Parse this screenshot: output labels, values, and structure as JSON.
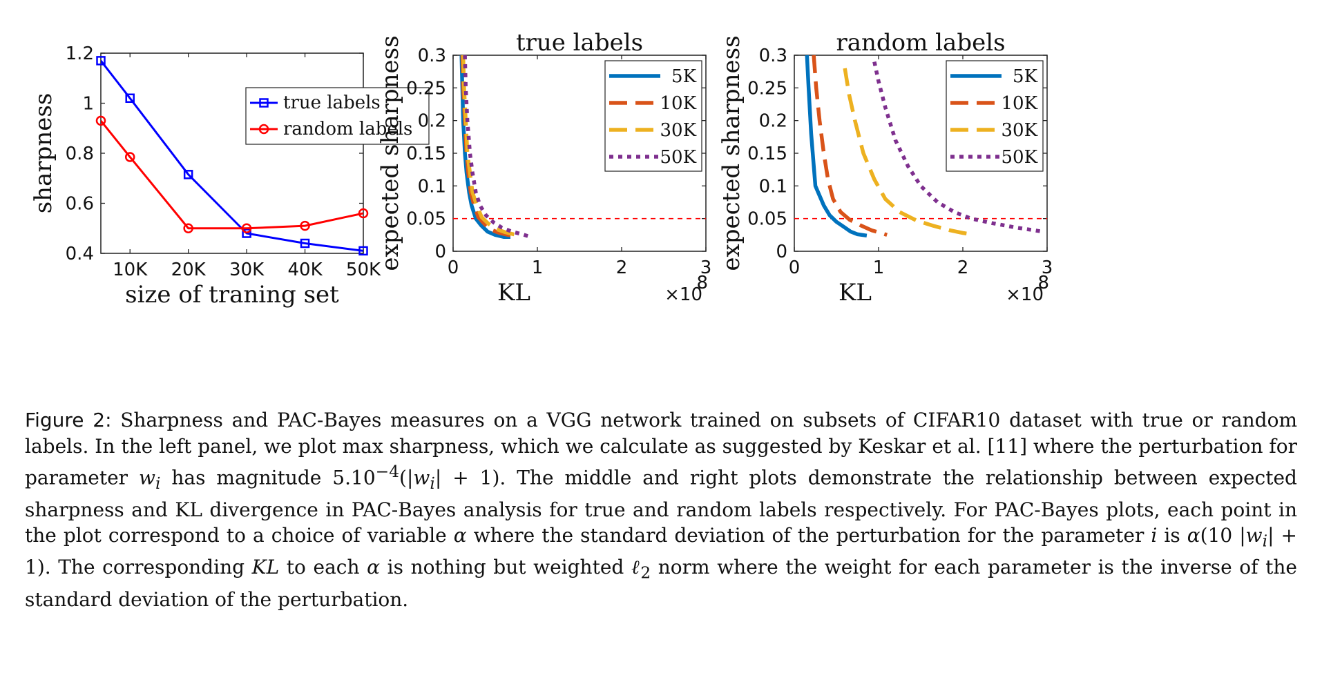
{
  "chart_data": [
    {
      "type": "line",
      "title": "",
      "xlabel": "size of traning set",
      "ylabel": "sharpness",
      "xlim": [
        5,
        50
      ],
      "ylim": [
        0.4,
        1.2
      ],
      "xticks": [
        10,
        20,
        30,
        40,
        50
      ],
      "xtick_labels": [
        "10K",
        "20K",
        "30K",
        "40K",
        "50K"
      ],
      "yticks": [
        0.4,
        0.6,
        0.8,
        1.0,
        1.2
      ],
      "ytick_labels": [
        "0.4",
        "0.6",
        "0.8",
        "1",
        "1.2"
      ],
      "legend_position": "top-right",
      "grid": false,
      "x": [
        5,
        10,
        20,
        30,
        40,
        50
      ],
      "series": [
        {
          "name": "true labels",
          "color": "#0000ff",
          "marker": "square",
          "values": [
            1.17,
            1.02,
            0.715,
            0.48,
            0.44,
            0.41
          ]
        },
        {
          "name": "random labels",
          "color": "#ff0000",
          "marker": "circle",
          "values": [
            0.93,
            0.785,
            0.5,
            0.5,
            0.51,
            0.56
          ]
        }
      ]
    },
    {
      "type": "line",
      "title": "true labels",
      "xlabel": "KL",
      "ylabel": "expected sharpness",
      "x_multiplier": "×10",
      "x_multiplier_exp": "8",
      "xlim": [
        0,
        3
      ],
      "ylim": [
        0,
        0.3
      ],
      "xticks": [
        0,
        1,
        2,
        3
      ],
      "xtick_labels": [
        "0",
        "1",
        "2",
        "3"
      ],
      "yticks": [
        0,
        0.05,
        0.1,
        0.15,
        0.2,
        0.25,
        0.3
      ],
      "ytick_labels": [
        "0",
        "0.05",
        "0.1",
        "0.15",
        "0.2",
        "0.25",
        "0.3"
      ],
      "reference_line": {
        "y": 0.05,
        "color": "#ff0000",
        "style": "dashed"
      },
      "legend_position": "top-right",
      "grid": false,
      "series": [
        {
          "name": "5K",
          "color": "#0072bd",
          "style": "solid",
          "points": [
            [
              0.1,
              0.3
            ],
            [
              0.11,
              0.25
            ],
            [
              0.12,
              0.2
            ],
            [
              0.14,
              0.15
            ],
            [
              0.16,
              0.12
            ],
            [
              0.19,
              0.09
            ],
            [
              0.22,
              0.07
            ],
            [
              0.27,
              0.05
            ],
            [
              0.33,
              0.04
            ],
            [
              0.41,
              0.03
            ],
            [
              0.5,
              0.025
            ],
            [
              0.6,
              0.022
            ],
            [
              0.68,
              0.022
            ]
          ]
        },
        {
          "name": "10K",
          "color": "#d95319",
          "style": "dashed",
          "points": [
            [
              0.11,
              0.3
            ],
            [
              0.12,
              0.25
            ],
            [
              0.14,
              0.2
            ],
            [
              0.16,
              0.15
            ],
            [
              0.18,
              0.12
            ],
            [
              0.21,
              0.09
            ],
            [
              0.25,
              0.07
            ],
            [
              0.3,
              0.052
            ],
            [
              0.37,
              0.042
            ],
            [
              0.45,
              0.033
            ],
            [
              0.55,
              0.028
            ],
            [
              0.65,
              0.025
            ],
            [
              0.72,
              0.024
            ]
          ]
        },
        {
          "name": "30K",
          "color": "#edb120",
          "style": "dashed",
          "points": [
            [
              0.12,
              0.3
            ],
            [
              0.13,
              0.25
            ],
            [
              0.15,
              0.2
            ],
            [
              0.17,
              0.15
            ],
            [
              0.2,
              0.12
            ],
            [
              0.23,
              0.09
            ],
            [
              0.28,
              0.07
            ],
            [
              0.34,
              0.052
            ],
            [
              0.42,
              0.042
            ],
            [
              0.51,
              0.034
            ],
            [
              0.62,
              0.029
            ],
            [
              0.72,
              0.026
            ],
            [
              0.8,
              0.025
            ]
          ]
        },
        {
          "name": "50K",
          "color": "#7e2f8e",
          "style": "dotted",
          "points": [
            [
              0.14,
              0.3
            ],
            [
              0.15,
              0.25
            ],
            [
              0.17,
              0.2
            ],
            [
              0.2,
              0.15
            ],
            [
              0.23,
              0.12
            ],
            [
              0.27,
              0.09
            ],
            [
              0.32,
              0.07
            ],
            [
              0.39,
              0.055
            ],
            [
              0.48,
              0.044
            ],
            [
              0.58,
              0.036
            ],
            [
              0.7,
              0.03
            ],
            [
              0.82,
              0.026
            ],
            [
              0.92,
              0.022
            ]
          ]
        }
      ]
    },
    {
      "type": "line",
      "title": "random labels",
      "xlabel": "KL",
      "ylabel": "expected sharpness",
      "x_multiplier": "×10",
      "x_multiplier_exp": "8",
      "xlim": [
        0,
        3
      ],
      "ylim": [
        0,
        0.3
      ],
      "xticks": [
        0,
        1,
        2,
        3
      ],
      "xtick_labels": [
        "0",
        "1",
        "2",
        "3"
      ],
      "yticks": [
        0,
        0.05,
        0.1,
        0.15,
        0.2,
        0.25,
        0.3
      ],
      "ytick_labels": [
        "0",
        "0.05",
        "0.1",
        "0.15",
        "0.2",
        "0.25",
        "0.3"
      ],
      "reference_line": {
        "y": 0.05,
        "color": "#ff0000",
        "style": "dashed"
      },
      "legend_position": "top-right",
      "grid": false,
      "series": [
        {
          "name": "5K",
          "color": "#0072bd",
          "style": "solid",
          "points": [
            [
              0.15,
              0.3
            ],
            [
              0.17,
              0.25
            ],
            [
              0.2,
              0.18
            ],
            [
              0.25,
              0.1
            ],
            [
              0.3,
              0.085
            ],
            [
              0.35,
              0.07
            ],
            [
              0.42,
              0.055
            ],
            [
              0.5,
              0.045
            ],
            [
              0.58,
              0.038
            ],
            [
              0.67,
              0.03
            ],
            [
              0.75,
              0.026
            ],
            [
              0.86,
              0.024
            ]
          ]
        },
        {
          "name": "10K",
          "color": "#d95319",
          "style": "dashed",
          "points": [
            [
              0.23,
              0.3
            ],
            [
              0.26,
              0.25
            ],
            [
              0.3,
              0.2
            ],
            [
              0.35,
              0.15
            ],
            [
              0.4,
              0.11
            ],
            [
              0.46,
              0.08
            ],
            [
              0.55,
              0.06
            ],
            [
              0.66,
              0.048
            ],
            [
              0.78,
              0.04
            ],
            [
              0.92,
              0.032
            ],
            [
              1.05,
              0.027
            ],
            [
              1.1,
              0.025
            ]
          ]
        },
        {
          "name": "30K",
          "color": "#edb120",
          "style": "dashed",
          "points": [
            [
              0.6,
              0.28
            ],
            [
              0.65,
              0.24
            ],
            [
              0.72,
              0.2
            ],
            [
              0.82,
              0.15
            ],
            [
              0.95,
              0.11
            ],
            [
              1.08,
              0.08
            ],
            [
              1.25,
              0.06
            ],
            [
              1.45,
              0.047
            ],
            [
              1.65,
              0.039
            ],
            [
              1.85,
              0.032
            ],
            [
              2.0,
              0.028
            ],
            [
              2.05,
              0.027
            ]
          ]
        },
        {
          "name": "50K",
          "color": "#7e2f8e",
          "style": "dotted",
          "points": [
            [
              0.95,
              0.29
            ],
            [
              1.0,
              0.26
            ],
            [
              1.08,
              0.22
            ],
            [
              1.2,
              0.17
            ],
            [
              1.35,
              0.13
            ],
            [
              1.5,
              0.1
            ],
            [
              1.7,
              0.075
            ],
            [
              1.9,
              0.06
            ],
            [
              2.1,
              0.05
            ],
            [
              2.35,
              0.043
            ],
            [
              2.6,
              0.037
            ],
            [
              2.85,
              0.032
            ],
            [
              2.95,
              0.03
            ]
          ]
        }
      ]
    }
  ],
  "caption": {
    "label": "Figure 2:",
    "line1": "Sharpness and PAC-Bayes measures on a VGG network trained on subsets of CIFAR10 dataset with",
    "line2": "true or random labels. In the left panel, we plot max sharpness, which we calculate as suggested by Keskar",
    "line3a": "et al. [11] where the perturbation for parameter ",
    "line3_w": "w",
    "line3_i": "i",
    "line3b": " has magnitude 5.10",
    "line3_exp": "−4",
    "line3c": "(|",
    "line3d": "| + 1). The middle and right plots",
    "line4": "demonstrate the relationship between expected sharpness and KL divergence in PAC-Bayes analysis for true and",
    "line5a": "random labels respectively. For PAC-Bayes plots, each point in the plot correspond to a choice of variable ",
    "alpha": "α",
    "line6a": "where the standard deviation of the perturbation for the parameter ",
    "line6_i": "i",
    "line6b": " is ",
    "line6c": "(10 |",
    "line6d": "| + 1). The corresponding ",
    "line6_kl": "KL",
    "line7a": "to each ",
    "line7b": " is nothing but weighted ",
    "ell": "ℓ",
    "two": "2",
    "line7c": " norm where the weight for each parameter is the inverse of the standard",
    "line8": "deviation of the perturbation."
  }
}
